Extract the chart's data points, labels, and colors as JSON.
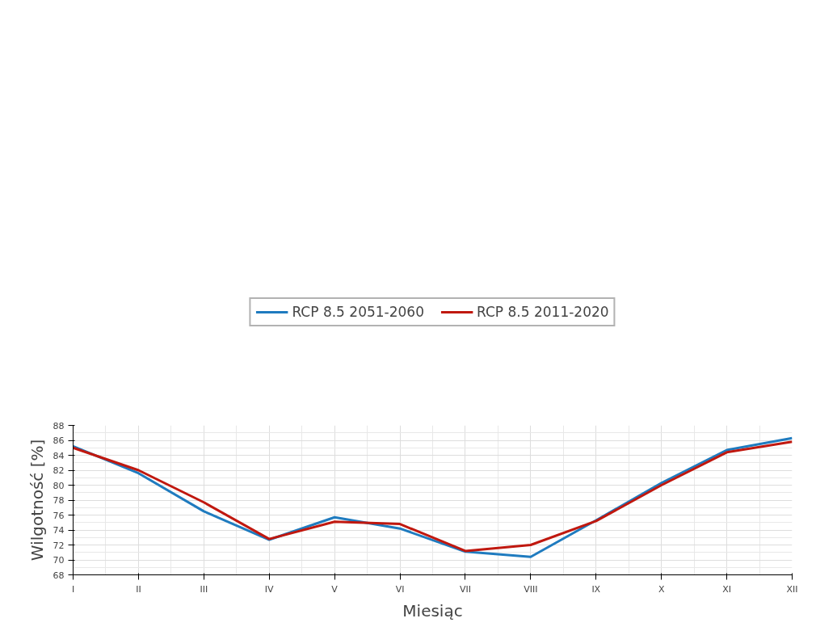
{
  "chart_data": {
    "type": "line",
    "xlabel": "Miesiąc",
    "ylabel": "Wilgotność [%]",
    "categories": [
      "I",
      "II",
      "III",
      "IV",
      "V",
      "VI",
      "VII",
      "VIII",
      "IX",
      "X",
      "XI",
      "XII"
    ],
    "series": [
      {
        "name": "RCP 8.5 2051-2060",
        "color": "#1f7bbf",
        "values": [
          85.2,
          81.6,
          76.5,
          72.7,
          75.7,
          74.2,
          71.1,
          70.4,
          75.3,
          80.3,
          84.7,
          86.3
        ]
      },
      {
        "name": "RCP 8.5 2011-2020",
        "color": "#c0180f",
        "values": [
          85.0,
          82.0,
          77.7,
          72.8,
          75.1,
          74.8,
          71.2,
          72.0,
          75.2,
          80.0,
          84.4,
          85.8
        ]
      }
    ],
    "ylim": [
      68,
      88
    ],
    "yticks": [
      68,
      70,
      72,
      74,
      76,
      78,
      80,
      82,
      84,
      86,
      88
    ],
    "grid": true,
    "legend": "top",
    "marker": "none",
    "line_style": "solid"
  }
}
